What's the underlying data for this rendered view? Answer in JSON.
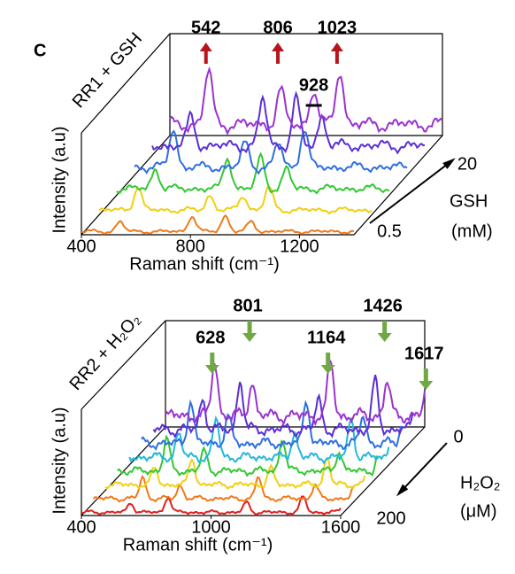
{
  "panel_label": "C",
  "chart_data": [
    {
      "type": "line",
      "title": "RR1 + GSH",
      "xlabel": "Raman shift (cm⁻¹)",
      "ylabel": "Intensity (a.u)",
      "xlim": [
        400,
        1400
      ],
      "xticks": [
        400,
        800,
        1200
      ],
      "zlabel": [
        "GSH",
        "(mM)"
      ],
      "zticks": [
        0.5,
        20
      ],
      "peaks": [
        542,
        806,
        1023
      ],
      "marker_peaks": [
        928
      ],
      "peak_color": "#b8141c",
      "colors": [
        "#f07a1a",
        "#f2cf10",
        "#33c733",
        "#2f6fe0",
        "#5a2fd6",
        "#9a33d0"
      ]
    },
    {
      "type": "line",
      "title": "RR2 + H₂O₂",
      "xlabel": "Raman shift (cm⁻¹)",
      "ylabel": "Intensity (a.u)",
      "xlim": [
        400,
        1600
      ],
      "xticks": [
        400,
        1000,
        1600
      ],
      "zlabel": [
        "H₂O₂",
        "(μM)"
      ],
      "zticks": [
        0,
        200
      ],
      "peaks": [
        628,
        801,
        1164,
        1426,
        1617
      ],
      "peak_color": "#70a844",
      "colors": [
        "#e02020",
        "#f07a1a",
        "#f2cf10",
        "#33c733",
        "#22b8dd",
        "#2f6fe0",
        "#5a2fd6",
        "#9a33d0"
      ]
    }
  ]
}
